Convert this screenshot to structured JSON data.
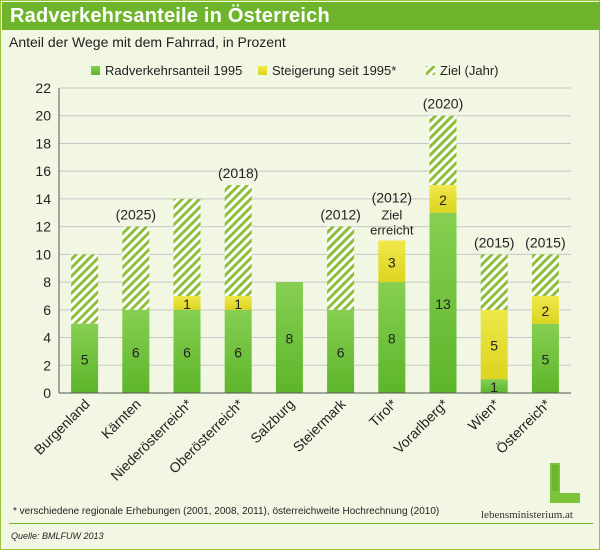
{
  "header": {
    "title": "Radverkehrsanteile in Österreich",
    "subtitle": "Anteil der Wege mit dem Fahrrad, in Prozent"
  },
  "footer": {
    "footnote": "* verschiedene regionale Erhebungen (2001, 2008, 2011), österreichweite Hochrechnung (2010)",
    "source": "Quelle:  BMLFUW  2013",
    "logo_text": "lebensministerium.at",
    "logo_letter": "L"
  },
  "colors": {
    "base": "#6cc13a",
    "increase": "#e3e230",
    "goal": "#8fbf3a",
    "brand": "#6fb52c"
  },
  "chart_data": {
    "type": "bar",
    "stacked": true,
    "categories": [
      "Burgenland",
      "Kärnten",
      "Niederösterreich*",
      "Oberösterreich*",
      "Salzburg",
      "Steiermark",
      "Tirol*",
      "Vorarlberg*",
      "Wien*",
      "Österreich*"
    ],
    "series": [
      {
        "name": "Radverkehrsanteil 1995",
        "values": [
          5,
          6,
          6,
          6,
          8,
          6,
          8,
          13,
          1,
          5
        ]
      },
      {
        "name": "Steigerung seit 1995*",
        "values": [
          0,
          0,
          1,
          1,
          0,
          0,
          3,
          2,
          5,
          2
        ]
      },
      {
        "name": "Ziel (Jahr)",
        "values": [
          5,
          6,
          7,
          8,
          0,
          6,
          0,
          5,
          4,
          3
        ]
      }
    ],
    "goal_totals": [
      10,
      12,
      14,
      15,
      null,
      12,
      11,
      20,
      10,
      10
    ],
    "goal_year_labels": [
      "",
      "(2025)",
      "",
      "(2018)",
      "",
      "(2012)",
      "(2012)",
      "(2020)",
      "(2015)",
      "(2015)"
    ],
    "annotations": [
      {
        "category": "Tirol*",
        "text": "Ziel\nerreicht"
      }
    ],
    "ylim": [
      0,
      22
    ],
    "yticks": [
      0,
      2,
      4,
      6,
      8,
      10,
      12,
      14,
      16,
      18,
      20,
      22
    ],
    "grid": true,
    "legend_position": "top",
    "xlabel": "",
    "ylabel": ""
  }
}
